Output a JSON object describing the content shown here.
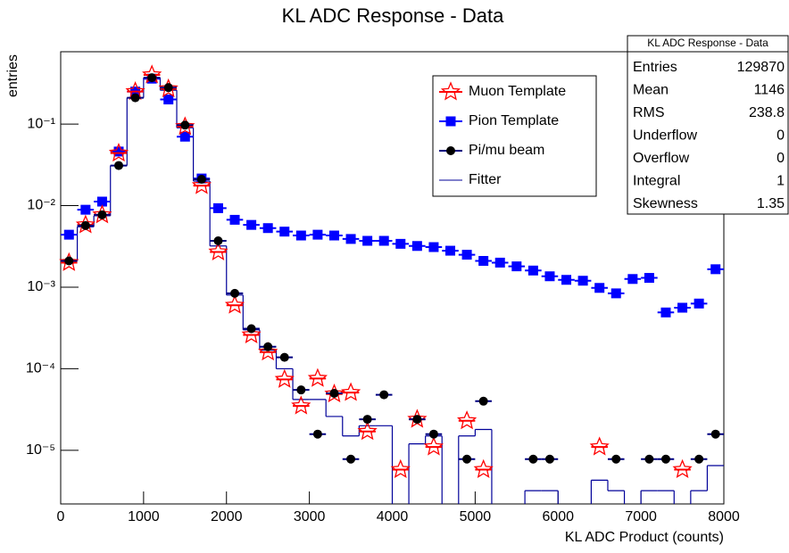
{
  "chart_data": {
    "type": "histogram",
    "title": "KL ADC Response - Data",
    "x_label": "KL ADC Product (counts)",
    "y_label": "entries",
    "log_y": true,
    "bins": [
      0,
      200,
      400,
      600,
      800,
      1000,
      1200,
      1400,
      1600,
      1800,
      2000,
      2200,
      2400,
      2600,
      2800,
      3000,
      3200,
      3400,
      3600,
      3800,
      4000,
      4200,
      4400,
      4600,
      4800,
      5000,
      5200,
      5400,
      5600,
      5800,
      6000,
      6200,
      6400,
      6600,
      6800,
      7000,
      7200,
      7400,
      7600,
      7800,
      8000
    ],
    "xlim": [
      0,
      8000
    ],
    "xticks": [
      0,
      1000,
      2000,
      3000,
      4000,
      5000,
      6000,
      7000,
      8000
    ],
    "ylim": [
      2.2e-06,
      0.77
    ],
    "yticks": [
      {
        "value": 1e-05,
        "label": "10⁻⁵"
      },
      {
        "value": 0.0001,
        "label": "10⁻⁴"
      },
      {
        "value": 0.001,
        "label": "10⁻³"
      },
      {
        "value": 0.01,
        "label": "10⁻²"
      },
      {
        "value": 0.1,
        "label": "10⁻¹"
      }
    ],
    "series": [
      {
        "name": "Muon Template",
        "color": "#ff0000",
        "marker": "star",
        "values": [
          0.002,
          0.0058,
          0.0077,
          0.044,
          0.25,
          0.4,
          0.27,
          0.093,
          0.0176,
          0.0027,
          0.0006,
          0.00026,
          0.00016,
          7.4e-05,
          3.5e-05,
          7.6e-05,
          4.9e-05,
          5.1e-05,
          1.7e-05,
          null,
          5.8e-06,
          2.4e-05,
          1.1e-05,
          null,
          2.3e-05,
          5.8e-06,
          null,
          null,
          null,
          null,
          null,
          null,
          1.1e-05,
          null,
          null,
          null,
          null,
          5.8e-06,
          null,
          null
        ]
      },
      {
        "name": "Pion Template",
        "color": "#0000ff",
        "marker": "square",
        "values": [
          0.0044,
          0.0089,
          0.0112,
          0.046,
          0.25,
          0.36,
          0.2,
          0.07,
          0.0215,
          0.0093,
          0.0067,
          0.0058,
          0.0053,
          0.0048,
          0.0043,
          0.0044,
          0.0043,
          0.0039,
          0.0037,
          0.0037,
          0.0034,
          0.0032,
          0.0031,
          0.0028,
          0.0025,
          0.0021,
          0.002,
          0.0018,
          0.0016,
          0.00136,
          0.00123,
          0.0012,
          0.00098,
          0.00084,
          0.00126,
          0.0013,
          0.00049,
          0.00056,
          0.00063,
          0.00166
        ]
      },
      {
        "name": "Pi/mu beam",
        "color": "#000000",
        "marker": "circle",
        "values": [
          0.0021,
          0.0057,
          0.0077,
          0.031,
          0.21,
          0.37,
          0.28,
          0.097,
          0.021,
          0.0037,
          0.00084,
          0.00031,
          0.000186,
          0.000138,
          5.5e-05,
          1.58e-05,
          5e-05,
          7.8e-06,
          2.4e-05,
          4.8e-05,
          null,
          2.4e-05,
          1.58e-05,
          null,
          7.8e-06,
          4e-05,
          null,
          null,
          7.8e-06,
          7.8e-06,
          null,
          null,
          null,
          7.8e-06,
          null,
          7.8e-06,
          7.8e-06,
          null,
          7.8e-06,
          1.58e-05
        ]
      },
      {
        "name": "Fitter",
        "color": "#000099",
        "marker": "step",
        "values": [
          0.0021,
          0.0055,
          0.0075,
          0.031,
          0.21,
          0.37,
          0.26,
          0.09,
          0.02,
          0.0032,
          0.0008,
          0.0003,
          0.00017,
          0.0001,
          4.2e-05,
          4.2e-05,
          2.6e-05,
          1.5e-05,
          2e-05,
          2e-05,
          null,
          1.2e-05,
          1.5e-05,
          null,
          1.5e-05,
          1.8e-05,
          null,
          null,
          3.2e-06,
          3.2e-06,
          null,
          null,
          4.3e-06,
          3.2e-06,
          null,
          3.2e-06,
          3.2e-06,
          null,
          3.2e-06,
          6.5e-06
        ]
      }
    ],
    "stats_box": {
      "title": "KL ADC Response - Data",
      "rows": [
        [
          "Entries",
          129870
        ],
        [
          "Mean",
          1146
        ],
        [
          "RMS",
          238.8
        ],
        [
          "Underflow",
          0
        ],
        [
          "Overflow",
          0
        ],
        [
          "Integral",
          1
        ],
        [
          "Skewness",
          1.35
        ]
      ]
    }
  }
}
